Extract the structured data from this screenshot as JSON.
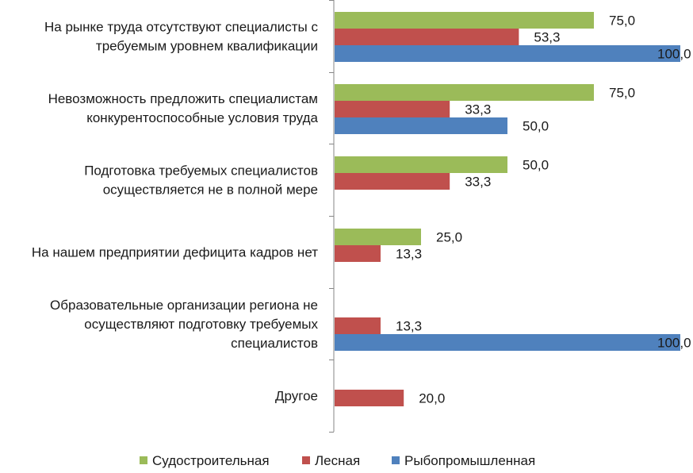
{
  "chart_data": {
    "type": "bar",
    "orientation": "horizontal",
    "categories": [
      [
        "На рынке труда отсутствуют специалисты с",
        "требуемым уровнем квалификации"
      ],
      [
        "Невозможность предложить специалистам",
        "конкурентоспособные условия труда"
      ],
      [
        "Подготовка требуемых специалистов",
        "осуществляется не в полной мере"
      ],
      [
        "На нашем предприятии дефицита кадров нет"
      ],
      [
        "Образовательные организации региона не",
        "осуществляют подготовку требуемых",
        "специалистов"
      ],
      [
        "Другое"
      ]
    ],
    "series": [
      {
        "name": "Судостроительная",
        "color": "#9bbb59",
        "values": [
          75.0,
          75.0,
          50.0,
          25.0,
          null,
          null
        ],
        "labels": [
          "75,0",
          "75,0",
          "50,0",
          "25,0",
          "",
          ""
        ]
      },
      {
        "name": "Лесная",
        "color": "#c0504d",
        "values": [
          53.3,
          33.3,
          33.3,
          13.3,
          13.3,
          20.0
        ],
        "labels": [
          "53,3",
          "33,3",
          "33,3",
          "13,3",
          "13,3",
          "20,0"
        ]
      },
      {
        "name": "Рыбопромышленная",
        "color": "#4f81bd",
        "values": [
          100.0,
          50.0,
          null,
          null,
          100.0,
          null
        ],
        "labels": [
          "100,0",
          "50,0",
          "",
          "",
          "100,0",
          ""
        ]
      }
    ],
    "xlim": [
      0,
      100
    ],
    "grid": false,
    "legend_position": "bottom",
    "title": "",
    "xlabel": "",
    "ylabel": ""
  }
}
